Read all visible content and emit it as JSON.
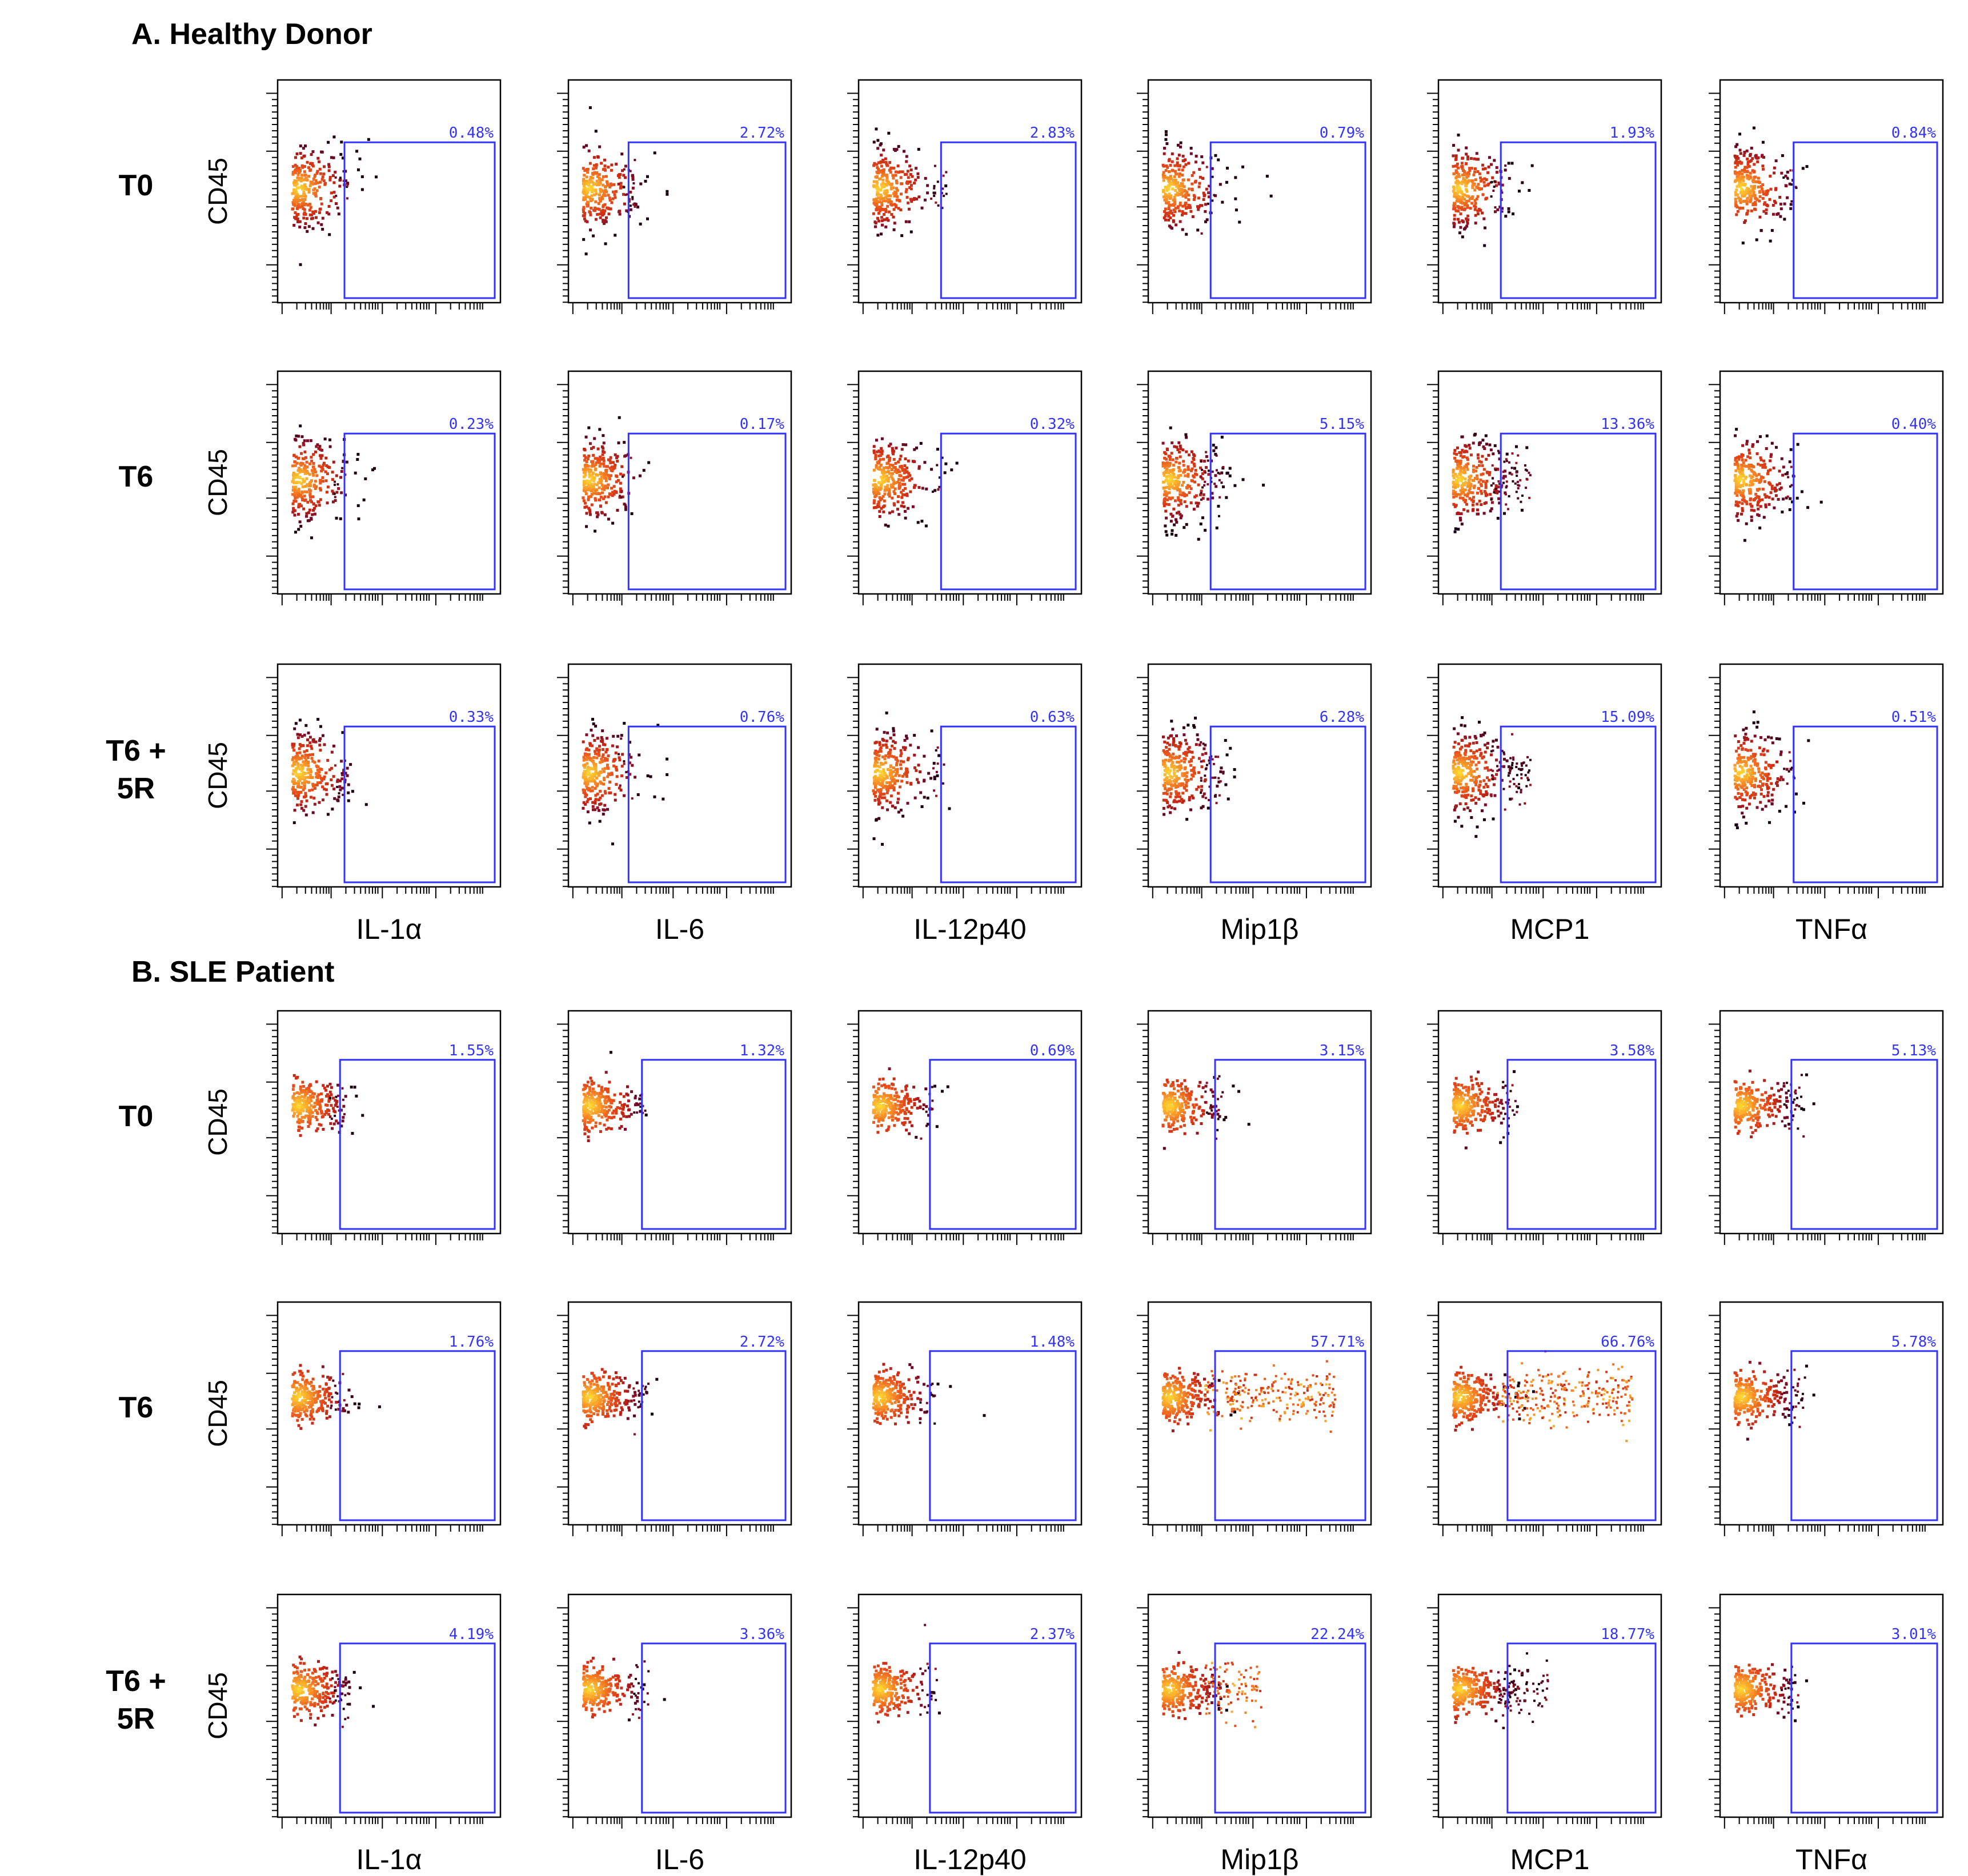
{
  "sections": [
    {
      "title": "A. Healthy Donor",
      "rows": [
        "T0",
        "T6",
        "T6 +\n5R"
      ],
      "x_labels": [
        "IL-1α",
        "IL-6",
        "IL-12p40",
        "Mip1β",
        "MCP1",
        "TNFα"
      ]
    },
    {
      "title": "B. SLE Patient",
      "rows": [
        "T0",
        "T6",
        "T6 +\n5R"
      ],
      "x_labels": [
        "IL-1α",
        "IL-6",
        "IL-12p40",
        "Mip1β",
        "MCP1",
        "TNFα"
      ]
    }
  ],
  "y_label": "CD45",
  "colors": {
    "gate": "#3333ff",
    "gate_text": "#3333ff",
    "dot_hot": "#ffdd33",
    "dot_mid": "#e8501a",
    "dot_cold": "#1a0010"
  },
  "chart_data": {
    "type": "scatter",
    "description_markers": [
      "IL-1α",
      "IL-6",
      "IL-12p40",
      "Mip1β",
      "MCP1",
      "TNFα"
    ],
    "y_axis": "CD45",
    "panels": [
      {
        "section": "A. Healthy Donor",
        "row": "T0",
        "gate_pct": [
          "0.48%",
          "2.72%",
          "2.83%",
          "0.79%",
          "1.93%",
          "0.84%"
        ]
      },
      {
        "section": "A. Healthy Donor",
        "row": "T6",
        "gate_pct": [
          "0.23%",
          "0.17%",
          "0.32%",
          "5.15%",
          "13.36%",
          "0.40%"
        ]
      },
      {
        "section": "A. Healthy Donor",
        "row": "T6 + 5R",
        "gate_pct": [
          "0.33%",
          "0.76%",
          "0.63%",
          "6.28%",
          "15.09%",
          "0.51%"
        ]
      },
      {
        "section": "B. SLE Patient",
        "row": "T0",
        "gate_pct": [
          "1.55%",
          "1.32%",
          "0.69%",
          "3.15%",
          "3.58%",
          "5.13%"
        ]
      },
      {
        "section": "B. SLE Patient",
        "row": "T6",
        "gate_pct": [
          "1.76%",
          "2.72%",
          "1.48%",
          "57.71%",
          "66.76%",
          "5.78%"
        ]
      },
      {
        "section": "B. SLE Patient",
        "row": "T6 + 5R",
        "gate_pct": [
          "4.19%",
          "3.36%",
          "2.37%",
          "22.24%",
          "18.77%",
          "3.01%"
        ]
      }
    ]
  }
}
